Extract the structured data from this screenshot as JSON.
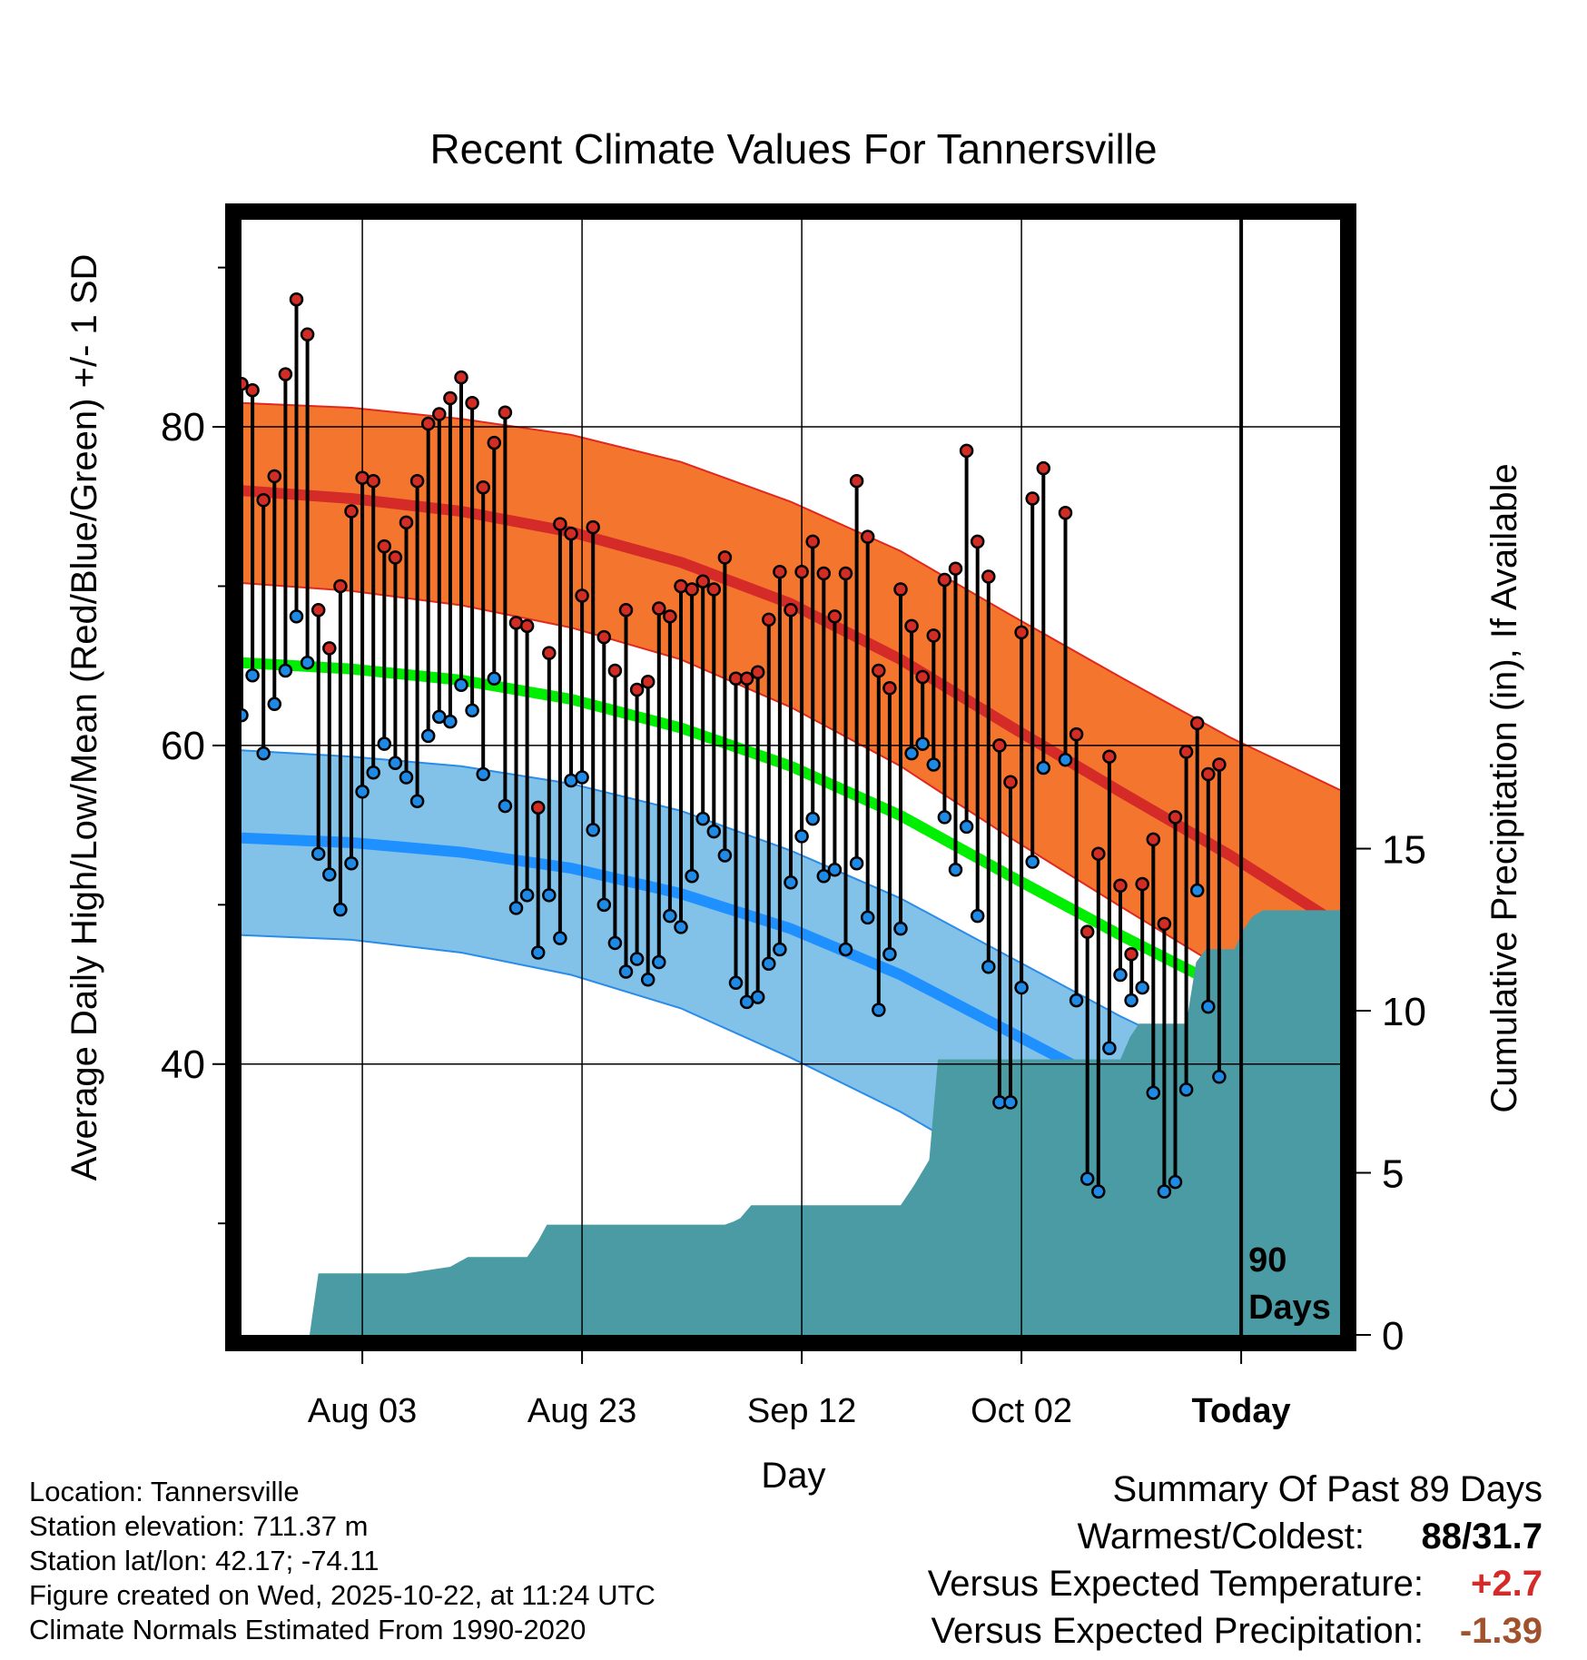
{
  "chart_data": {
    "type": "line",
    "title": "Recent Climate Values For Tannersville",
    "xlabel": "Day",
    "ylabel": "Average Daily High/Low/Mean (Red/Blue/Green) +/- 1 SD",
    "ylabel2": "Cumulative Precipitation (in), If Available",
    "x_ticks": [
      {
        "day": 11,
        "label": "Aug 03"
      },
      {
        "day": 31,
        "label": "Aug 23"
      },
      {
        "day": 51,
        "label": "Sep 12"
      },
      {
        "day": 71,
        "label": "Oct 02"
      },
      {
        "day": 91,
        "label": "Today"
      }
    ],
    "xlim": [
      0,
      100
    ],
    "ylim": [
      23,
      93
    ],
    "y_ticks": [
      40,
      60,
      80
    ],
    "y_minor_ticks": [
      30,
      50,
      70,
      90
    ],
    "y2lim": [
      0,
      34.4
    ],
    "y2_ticks": [
      0,
      5,
      10,
      15
    ],
    "today_marker_label": [
      "90",
      "Days"
    ],
    "normals_x": [
      0,
      10,
      20,
      30,
      40,
      50,
      60,
      70,
      80,
      90,
      100
    ],
    "normal_high": [
      76.0,
      75.5,
      74.7,
      73.4,
      71.5,
      68.9,
      65.4,
      61.2,
      57.1,
      53.1,
      48.7
    ],
    "normal_high_upper": [
      81.5,
      81.2,
      80.5,
      79.5,
      77.8,
      75.3,
      72.2,
      68.2,
      64.3,
      60.5,
      57.2
    ],
    "normal_high_lower": [
      70.2,
      69.7,
      68.8,
      67.4,
      65.4,
      62.4,
      58.7,
      54.2,
      49.9,
      45.7,
      40.3
    ],
    "normal_mean": [
      65.2,
      64.8,
      64.1,
      62.9,
      61.1,
      58.7,
      55.6,
      51.8,
      48.1,
      44.6,
      41.2
    ],
    "normal_low": [
      54.2,
      53.9,
      53.3,
      52.3,
      50.7,
      48.5,
      45.6,
      42.0,
      38.4,
      35.2,
      32.6
    ],
    "normal_low_upper": [
      59.7,
      59.3,
      58.7,
      57.6,
      55.9,
      53.4,
      50.4,
      46.7,
      43.0,
      39.7,
      36.6
    ],
    "normal_low_lower": [
      48.1,
      47.8,
      47.0,
      45.6,
      43.5,
      40.4,
      37.0,
      33.0,
      29.0,
      25.5,
      22.8
    ],
    "daily_high": [
      82.7,
      82.3,
      75.4,
      76.9,
      83.3,
      88.0,
      85.8,
      68.5,
      66.1,
      70.0,
      74.7,
      76.8,
      76.6,
      72.5,
      71.8,
      74.0,
      76.6,
      80.2,
      80.8,
      81.8,
      83.1,
      81.5,
      76.2,
      79.0,
      80.9,
      67.7,
      67.5,
      56.1,
      65.8,
      73.9,
      73.3,
      69.4,
      73.7,
      66.8,
      64.7,
      68.5,
      63.5,
      64.0,
      68.6,
      68.1,
      70.0,
      69.8,
      70.3,
      69.8,
      71.8,
      64.2,
      64.2,
      64.6,
      67.9,
      70.9,
      68.5,
      70.9,
      72.8,
      70.8,
      68.1,
      70.8,
      76.6,
      73.1,
      64.7,
      63.6,
      69.8,
      67.5,
      64.3,
      66.9,
      70.4,
      71.1,
      78.5,
      72.8,
      70.6,
      60.0,
      57.7,
      67.1,
      75.5,
      77.4,
      null,
      74.6,
      60.7,
      48.3,
      53.2,
      59.3,
      51.2,
      46.9,
      51.3,
      54.1,
      48.8,
      55.5,
      59.6,
      61.4,
      58.2,
      58.8
    ],
    "daily_low": [
      61.9,
      64.4,
      59.5,
      62.6,
      64.7,
      68.1,
      65.2,
      53.2,
      51.9,
      49.7,
      52.6,
      57.1,
      58.3,
      60.1,
      58.9,
      58.0,
      56.5,
      60.6,
      61.8,
      61.5,
      63.8,
      62.2,
      58.2,
      64.2,
      56.2,
      49.8,
      50.6,
      47.0,
      50.6,
      47.9,
      57.8,
      58.0,
      54.7,
      50.0,
      47.6,
      45.8,
      46.6,
      45.3,
      46.4,
      49.3,
      48.6,
      51.8,
      55.4,
      54.6,
      53.1,
      45.1,
      43.9,
      44.2,
      46.3,
      47.2,
      51.4,
      54.3,
      55.4,
      51.8,
      52.2,
      47.2,
      52.6,
      49.2,
      43.4,
      46.9,
      48.5,
      59.5,
      60.1,
      58.8,
      55.5,
      52.2,
      54.9,
      49.3,
      46.1,
      37.6,
      37.6,
      44.8,
      52.7,
      58.6,
      null,
      59.1,
      44.0,
      32.8,
      32.0,
      41.0,
      45.6,
      44.0,
      44.8,
      38.2,
      32.0,
      32.6,
      38.4,
      50.9,
      43.6,
      39.2
    ],
    "cumulative_precip_x": [
      0,
      6.2,
      7.0,
      15.0,
      19.0,
      20.6,
      26.0,
      27.0,
      27.8,
      33.2,
      38.0,
      44.0,
      44.8,
      45.4,
      46.4,
      60.0,
      61.2,
      62.6,
      63.4,
      67.4,
      80.0,
      80.9,
      81.7,
      86.0,
      86.9,
      87.8,
      90.4,
      91.2,
      92.0,
      93.0,
      100.0
    ],
    "cumulative_precip_y": [
      0,
      0,
      1.9,
      1.9,
      2.1,
      2.4,
      2.4,
      2.9,
      3.4,
      3.4,
      3.4,
      3.4,
      3.5,
      3.6,
      4.0,
      4.0,
      4.6,
      5.4,
      8.5,
      8.5,
      8.5,
      9.2,
      9.6,
      9.6,
      11.5,
      11.9,
      11.9,
      12.5,
      12.9,
      13.1,
      13.1
    ],
    "colors": {
      "high_band": "#f4762e",
      "high_band_edge": "#e0281e",
      "normal_high_line": "#d42a28",
      "low_band": "#82c1e8",
      "low_band_edge": "#2a8ce8",
      "normal_low_line": "#1e90ff",
      "normal_mean_line": "#00ee00",
      "high_marker": "#d22d25",
      "low_marker": "#1e8ae6",
      "precip_fill": "#4a9ba4"
    }
  },
  "station": {
    "location": "Location: Tannersville",
    "elevation": "Station elevation: 711.37 m",
    "latlon": "Station lat/lon: 42.17; -74.11",
    "created": "Figure created on Wed, 2025-10-22, at 11:24 UTC",
    "normals": "Climate Normals Estimated From 1990-2020"
  },
  "summary": {
    "title": "Summary Of Past 89 Days",
    "warmest_label": "Warmest/Coldest:",
    "warmest_value": "88/31.7",
    "temp_label": "Versus Expected Temperature:",
    "temp_value": "+2.7",
    "temp_color": "#d42a28",
    "precip_label": "Versus Expected Precipitation:",
    "precip_value": "-1.39",
    "precip_color": "#a0522d"
  }
}
